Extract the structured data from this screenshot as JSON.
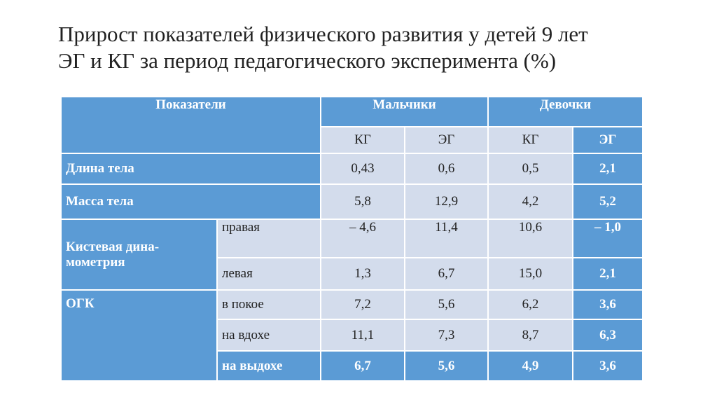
{
  "title": {
    "lines": [
      "Прирост показателей физического развития у детей 9 лет",
      "ЭГ и КГ за период педагогического эксперимента (%)"
    ]
  },
  "table": {
    "header": {
      "indicator": "Показатели",
      "groups": [
        "Мальчики",
        "Девочки"
      ],
      "subgroups": [
        "КГ",
        "ЭГ",
        "КГ",
        "ЭГ"
      ]
    },
    "rows": [
      {
        "label": "Длина тела",
        "values": [
          "0,43",
          "0,6",
          "0,5",
          "2,1"
        ]
      },
      {
        "label": "Масса тела",
        "values": [
          "5,8",
          "12,9",
          "4,2",
          "5,2"
        ]
      },
      {
        "label": [
          "Кистевая дина-",
          "мометрия"
        ],
        "sub": [
          {
            "label": "правая",
            "values": [
              "– 4,6",
              "11,4",
              "10,6",
              "– 1,0"
            ]
          },
          {
            "label": "левая",
            "values": [
              "1,3",
              "6,7",
              "15,0",
              "2,1"
            ]
          }
        ]
      },
      {
        "label": "ОГК",
        "sub": [
          {
            "label": "в покое",
            "values": [
              "7,2",
              "5,6",
              "6,2",
              "3,6"
            ]
          },
          {
            "label": "на вдохе",
            "values": [
              "11,1",
              "7,3",
              "8,7",
              "6,3"
            ]
          },
          {
            "label": "на выдохе",
            "values": [
              "6,7",
              "5,6",
              "4,9",
              "3,6"
            ]
          }
        ]
      }
    ]
  }
}
